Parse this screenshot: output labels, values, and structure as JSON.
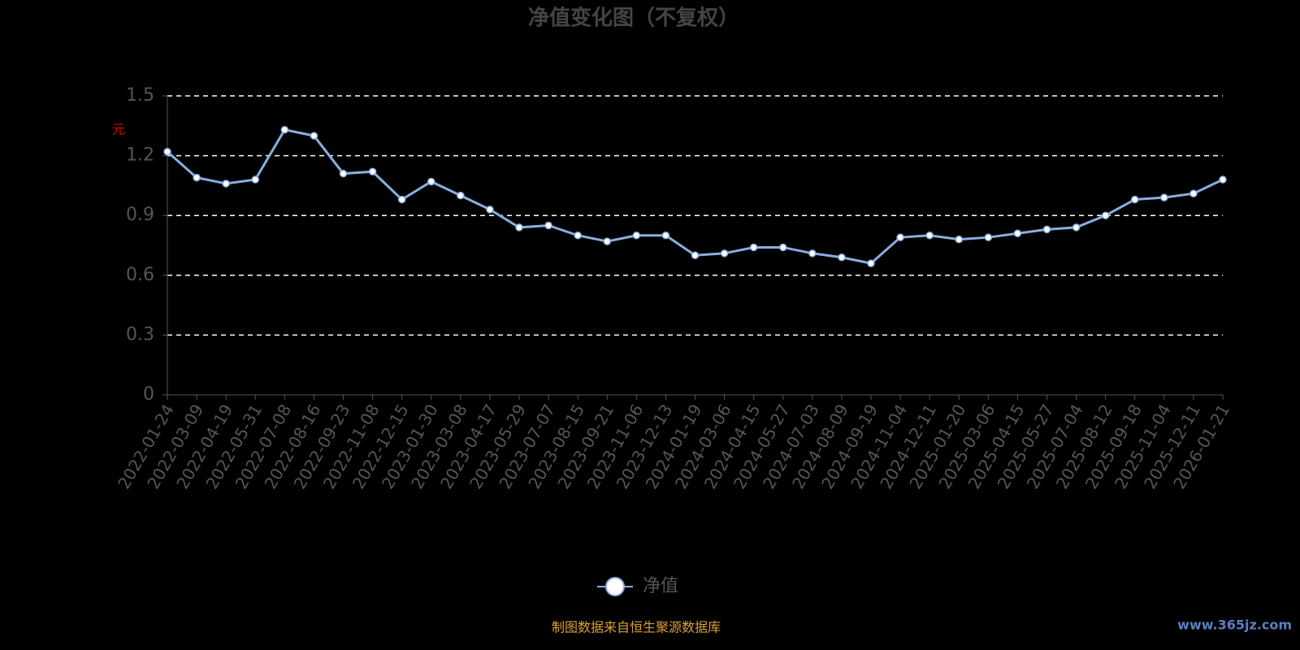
{
  "chart_data": {
    "type": "line",
    "title": "净值变化图（不复权）",
    "y_label": "元",
    "categories": [
      "2022-01-24",
      "2022-03-09",
      "2022-04-19",
      "2022-05-31",
      "2022-07-08",
      "2022-08-16",
      "2022-09-23",
      "2022-11-08",
      "2022-12-15",
      "2023-01-30",
      "2023-03-08",
      "2023-04-17",
      "2023-05-29",
      "2023-07-07",
      "2023-08-15",
      "2023-09-21",
      "2023-11-06",
      "2023-12-13",
      "2024-01-19",
      "2024-03-06",
      "2024-04-15",
      "2024-05-27",
      "2024-07-03",
      "2024-08-09",
      "2024-09-19",
      "2024-11-04",
      "2024-12-11",
      "2025-01-20",
      "2025-03-06",
      "2025-04-15",
      "2025-05-27",
      "2025-07-04",
      "2025-08-12",
      "2025-09-18",
      "2025-11-04",
      "2025-12-11",
      "2026-01-21"
    ],
    "series": [
      {
        "name": "净值",
        "color": "#8aaee0",
        "values": [
          1.22,
          1.09,
          1.06,
          1.08,
          1.33,
          1.3,
          1.11,
          1.12,
          0.98,
          1.07,
          1.0,
          0.93,
          0.84,
          0.85,
          0.8,
          0.77,
          0.8,
          0.8,
          0.7,
          0.71,
          0.74,
          0.74,
          0.71,
          0.69,
          0.66,
          0.79,
          0.8,
          0.78,
          0.79,
          0.81,
          0.83,
          0.84,
          0.9,
          0.98,
          0.99,
          1.01,
          1.08
        ]
      }
    ],
    "ylim": [
      0,
      1.5
    ],
    "yticks": [
      0,
      0.3,
      0.6,
      0.9,
      1.2,
      1.5
    ],
    "grid": true,
    "footer": "制图数据来自恒生聚源数据库",
    "watermark": "www.365jz.com"
  }
}
